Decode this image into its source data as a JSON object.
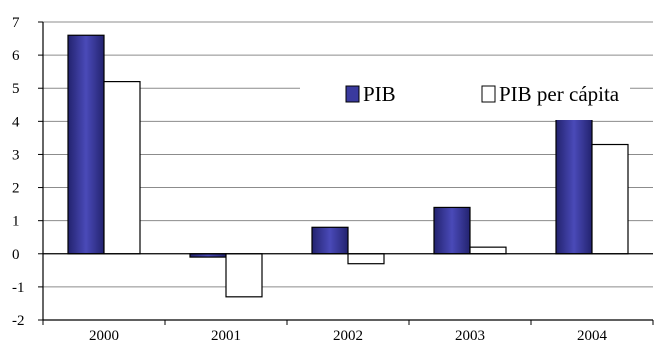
{
  "chart_data": {
    "type": "bar",
    "title": "",
    "xlabel": "",
    "ylabel": "",
    "categories": [
      "2000",
      "2001",
      "2002",
      "2003",
      "2004"
    ],
    "series": [
      {
        "name": "PIB",
        "values": [
          6.6,
          -0.1,
          0.8,
          1.4,
          4.3
        ],
        "color": "#3a3a9e"
      },
      {
        "name": "PIB per cápita",
        "values": [
          5.2,
          -1.3,
          -0.3,
          0.2,
          3.3
        ],
        "color": "#ffffff"
      }
    ],
    "ylim": [
      -2,
      7
    ],
    "yticks": [
      "-2",
      "-1",
      "0",
      "1",
      "2",
      "3",
      "4",
      "5",
      "6",
      "7"
    ],
    "grid": true,
    "legend_position": "top-right"
  }
}
